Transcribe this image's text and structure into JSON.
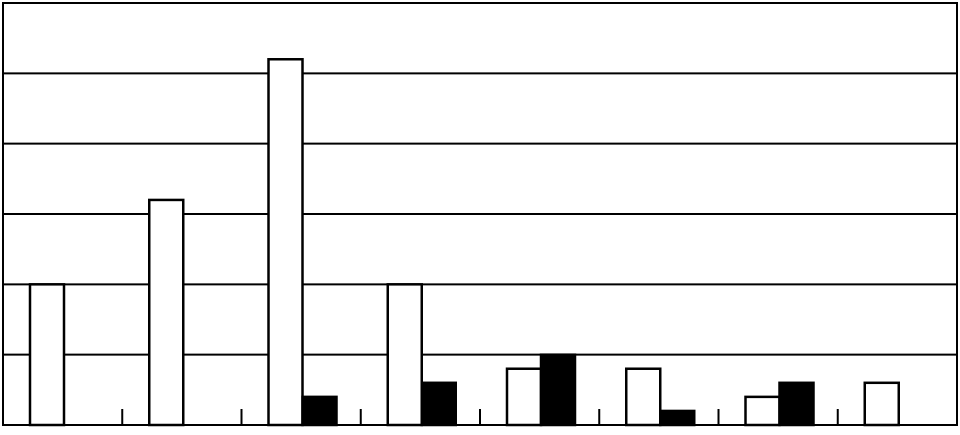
{
  "chart_data": {
    "type": "bar",
    "categories": [
      null,
      null,
      null,
      null,
      null,
      null,
      null,
      null
    ],
    "series": [
      {
        "color": "#ffffff",
        "values": [
          2,
          3.2,
          5.2,
          2,
          0.8,
          0.8,
          0.4,
          0.6
        ]
      },
      {
        "color": "#000000",
        "values": [
          null,
          null,
          0.4,
          0.6,
          1,
          0.2,
          0.6,
          null
        ]
      }
    ],
    "ylim": [
      0,
      6
    ],
    "yticks": [
      0,
      1,
      2,
      3,
      4,
      5,
      6
    ],
    "grid": true
  }
}
